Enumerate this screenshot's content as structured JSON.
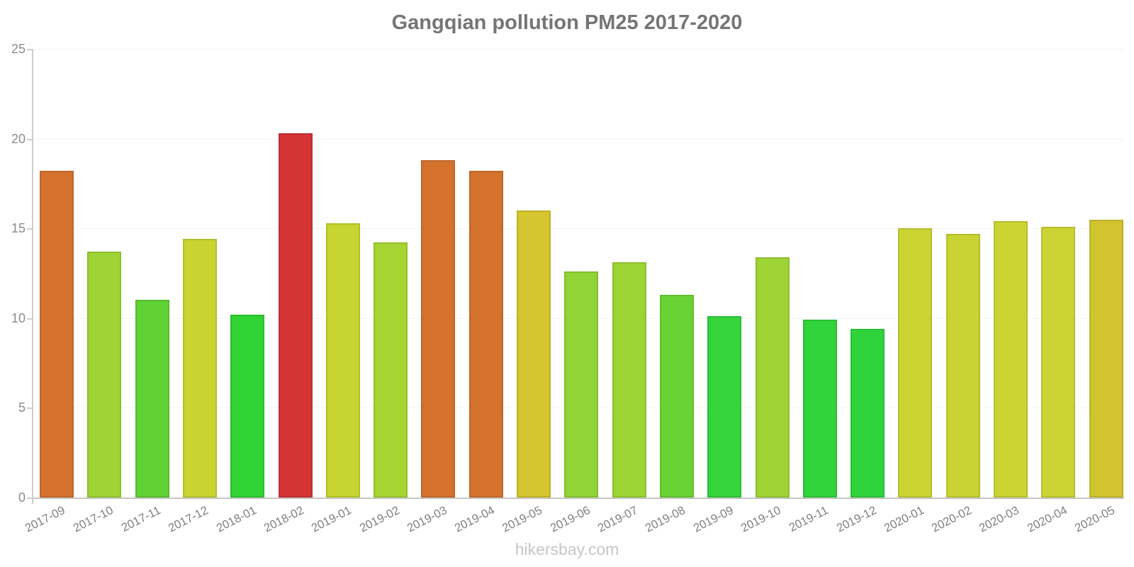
{
  "header": {
    "title": "Gangqian pollution PM25 2017-2020"
  },
  "footer": {
    "watermark": "hikersbay.com"
  },
  "chart_data": {
    "type": "bar",
    "title": "Gangqian pollution PM25 2017-2020",
    "xlabel": "",
    "ylabel": "",
    "ylim": [
      0,
      25
    ],
    "y_ticks": [
      0,
      5,
      10,
      15,
      20,
      25
    ],
    "grid": "horizontal-faint",
    "legend": "none",
    "x_label_rotation_deg": -27,
    "categories": [
      "2017-09",
      "2017-10",
      "2017-11",
      "2017-12",
      "2018-01",
      "2018-02",
      "2019-01",
      "2019-02",
      "2019-03",
      "2019-04",
      "2019-05",
      "2019-06",
      "2019-07",
      "2019-08",
      "2019-09",
      "2019-10",
      "2019-11",
      "2019-12",
      "2020-01",
      "2020-02",
      "2020-03",
      "2020-04",
      "2020-05"
    ],
    "values": [
      18.2,
      13.7,
      11.0,
      14.4,
      10.2,
      20.3,
      15.3,
      14.2,
      18.8,
      18.2,
      16.0,
      12.6,
      13.1,
      11.3,
      10.1,
      13.4,
      9.9,
      9.4,
      15.0,
      14.7,
      15.4,
      15.1,
      15.5
    ],
    "bar_colors": [
      "#d4722e",
      "#a0d435",
      "#60d234",
      "#c8d530",
      "#2fd334",
      "#d43434",
      "#c6d52f",
      "#a6d433",
      "#d4722e",
      "#d4722e",
      "#d5c52e",
      "#90d435",
      "#9cd434",
      "#6ad334",
      "#35d43b",
      "#9ed434",
      "#31d43a",
      "#2fd43d",
      "#cbd432",
      "#c9d434",
      "#ccd432",
      "#cbd433",
      "#d2c42f"
    ],
    "colors_meaning": {
      "red": "#d43434",
      "orange": "#d4722e",
      "gold": "#d5c52e",
      "yellow_green": "#cbd432",
      "green": "#60d234",
      "vivid_green": "#2fd334"
    },
    "axis_color": "#cdcdcd",
    "gridline_color": "#f4f4f4",
    "tick_label_color": "#8c8c8c"
  }
}
